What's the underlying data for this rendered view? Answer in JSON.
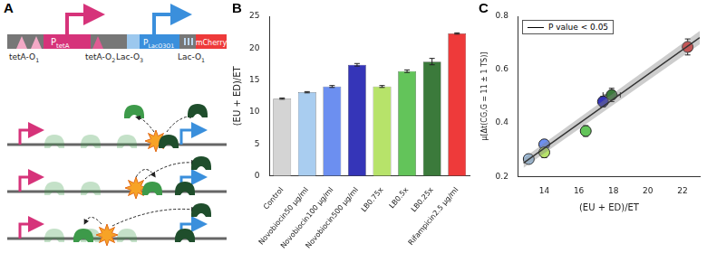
{
  "panel_labels": [
    "A",
    "B",
    "C"
  ],
  "diagram": {
    "construct": {
      "tet_operators": [
        {
          "main": "tetA-O",
          "sub": "1"
        },
        {
          "main": "tetA-O",
          "sub": "2"
        }
      ],
      "tet_promoter": {
        "main": "P",
        "sub": "tetA"
      },
      "lac_promoter": {
        "main": "P",
        "sub": "LacO3O1"
      },
      "lac_operators": [
        {
          "main": "Lac-O",
          "sub": "3"
        },
        {
          "main": "Lac-O",
          "sub": "1"
        }
      ],
      "reporter": "mCherry"
    }
  },
  "chart_data": [
    {
      "type": "bar",
      "categories": [
        "Control",
        "Novobiocin50 µg/ml",
        "Novobiocin100 µg/ml",
        "Novobiocin500 µg/ml",
        "LB0.75x",
        "LB0.5x",
        "LB0.25x",
        "Rifampicin2.5 µg/ml"
      ],
      "values": [
        12.1,
        13.1,
        14.0,
        17.4,
        14.0,
        16.4,
        17.9,
        22.3
      ],
      "errors": [
        0.1,
        0.1,
        0.15,
        0.2,
        0.15,
        0.2,
        0.5,
        0.1
      ],
      "colors": [
        "#d4d4d4",
        "#a9cdf0",
        "#6c8ff0",
        "#3535b8",
        "#b7e36a",
        "#63c45a",
        "#3b7a3b",
        "#ee3a3a"
      ],
      "ylabel": "(EU + ED)/ET",
      "ylim": [
        0,
        25
      ],
      "yticks": [
        0,
        5,
        10,
        15,
        20,
        25
      ],
      "grid": false
    },
    {
      "type": "scatter",
      "xlabel": "(EU + ED)/ET",
      "ylabel": "μ[Δt(CG,G = 11 ± 1 TS)]",
      "xlim": [
        12.5,
        23
      ],
      "xticks": [
        14,
        16,
        18,
        20,
        22
      ],
      "ylim": [
        0.2,
        0.8
      ],
      "yticks": [
        0.2,
        0.4,
        0.6,
        0.8
      ],
      "legend": "upper left",
      "grid": false,
      "series": [
        {
          "name": "P value < 0.05",
          "type": "line",
          "color": "#000000",
          "x": [
            12.8,
            23
          ],
          "values": [
            0.25,
            0.72
          ],
          "band_lower": [
            0.232,
            0.695
          ],
          "band_upper": [
            0.268,
            0.745
          ]
        },
        {
          "type": "scatter",
          "marker": "circle",
          "x": [
            13.1,
            14.0,
            17.4,
            14.0,
            16.4,
            17.9,
            22.3
          ],
          "values": [
            0.265,
            0.32,
            0.48,
            0.29,
            0.37,
            0.505,
            0.685
          ],
          "x_errors": [
            0.1,
            0.15,
            0.2,
            0.15,
            0.2,
            0.5,
            0.1
          ],
          "y_errors": [
            0.015,
            0.015,
            0.02,
            0.02,
            0.02,
            0.025,
            0.03
          ],
          "colors": [
            "#a9cdf0",
            "#6c8ff0",
            "#3535b8",
            "#b7e36a",
            "#63c45a",
            "#3b7a3b",
            "#ee3a3a"
          ]
        }
      ]
    }
  ]
}
